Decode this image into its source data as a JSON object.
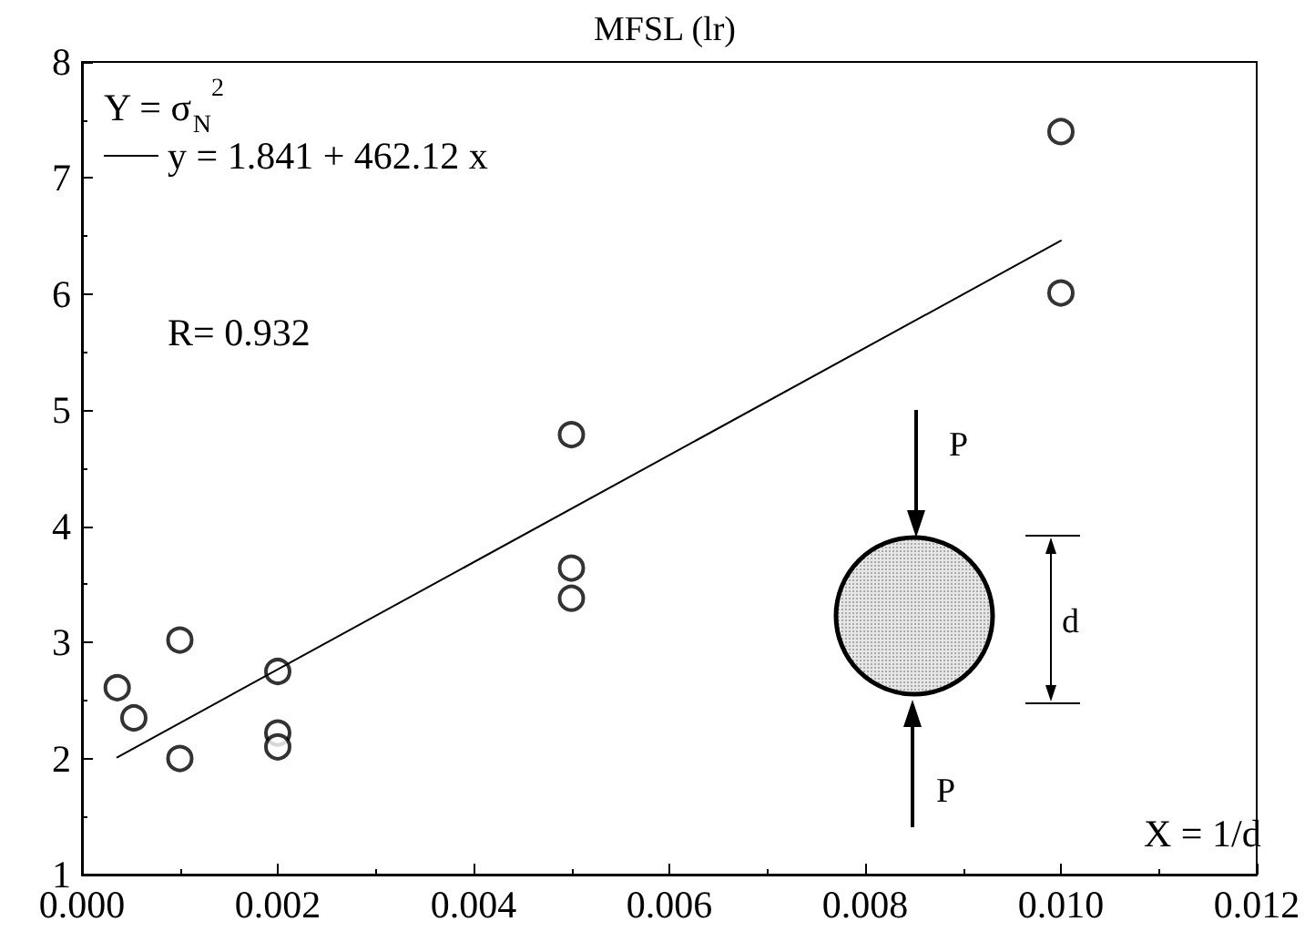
{
  "chart_data": {
    "type": "scatter",
    "title": "MFSL (lr)",
    "series": [
      {
        "color": "#000000",
        "x": [
          0.00036,
          0.00053,
          0.001,
          0.001,
          0.002,
          0.002,
          0.002,
          0.005,
          0.005,
          0.005,
          0.01,
          0.01
        ],
        "values": [
          2.61,
          2.35,
          3.02,
          2.0,
          2.75,
          2.22,
          2.1,
          4.79,
          3.64,
          3.38,
          7.4,
          6.01
        ]
      },
      {
        "type": "line",
        "name": "y = 1.841 + 462.12 x",
        "color": "#000000",
        "marker": "none",
        "x": [
          0.00036,
          0.01
        ],
        "values": [
          2.01,
          6.46
        ]
      }
    ],
    "xlim": [
      0,
      0.012
    ],
    "xticks": [
      {
        "value": 0,
        "label": "0.000"
      },
      {
        "value": 0.002,
        "label": "0.002"
      },
      {
        "value": 0.004,
        "label": "0.004"
      },
      {
        "value": 0.006,
        "label": "0.006"
      },
      {
        "value": 0.008,
        "label": "0.008"
      },
      {
        "value": 0.01,
        "label": "0.010"
      },
      {
        "value": 0.012,
        "label": "0.012"
      }
    ],
    "ylim": [
      1,
      8
    ],
    "yticks": [
      1,
      2,
      3,
      4,
      5,
      6,
      7,
      8
    ],
    "grid": false,
    "legend": "top left",
    "marker": "circle",
    "line_style": "solid",
    "annotations": [
      "Y = σ$_{N}$$^{2}$",
      "R= 0.932",
      "X = 1/d",
      "P",
      "P",
      "d"
    ]
  }
}
